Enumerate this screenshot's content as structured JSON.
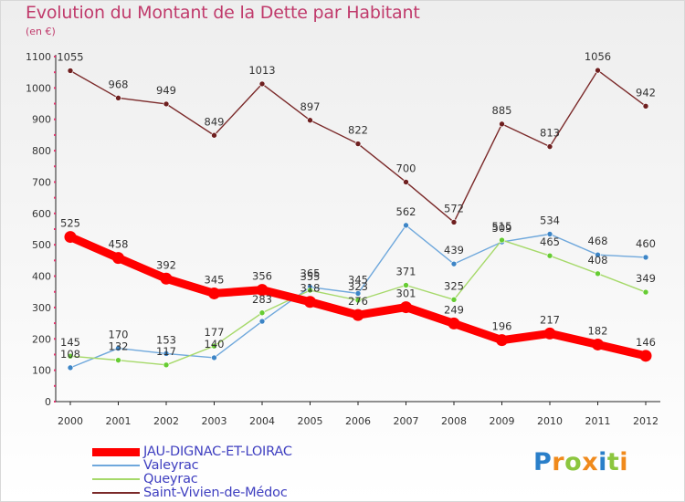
{
  "title": "Evolution du Montant de la Dette par Habitant",
  "subtitle": "(en €)",
  "logo": {
    "text": "Proxiti",
    "letters": [
      "P",
      "r",
      "o",
      "x",
      "i",
      "t",
      "i"
    ],
    "colors": [
      "#2a7fc9",
      "#f08a1c",
      "#8cc63f",
      "#f08a1c",
      "#2a7fc9",
      "#8cc63f",
      "#f08a1c"
    ]
  },
  "chart_data": {
    "type": "line",
    "title": "Evolution du Montant de la Dette par Habitant",
    "subtitle": "(en €)",
    "xlabel": "",
    "ylabel": "",
    "x": [
      "2000",
      "2001",
      "2002",
      "2003",
      "2004",
      "2005",
      "2006",
      "2007",
      "2008",
      "2009",
      "2010",
      "2011",
      "2012"
    ],
    "ylim": [
      0,
      1100
    ],
    "yticks": [
      0,
      100,
      200,
      300,
      400,
      500,
      600,
      700,
      800,
      900,
      1000,
      1100
    ],
    "grid": false,
    "legend_position": "bottom-left",
    "series": [
      {
        "name": "JAU-DIGNAC-ET-LOIRAC",
        "color": "#ff0000",
        "marker_color": "#ff0000",
        "width": "thick",
        "values": [
          525,
          458,
          392,
          345,
          356,
          318,
          276,
          301,
          249,
          196,
          217,
          182,
          146
        ],
        "labels": [
          "525",
          "458",
          "392",
          "345",
          "356",
          "318",
          "276",
          "301",
          "249",
          "196",
          "217",
          "182",
          "146"
        ]
      },
      {
        "name": "Valeyrac",
        "color": "#6fa8dc",
        "marker_color": "#3d85c6",
        "width": "thin",
        "values": [
          108,
          170,
          153,
          140,
          256,
          365,
          345,
          562,
          439,
          509,
          534,
          468,
          460
        ],
        "labels": [
          "108",
          "170",
          "153",
          "140",
          "",
          "365",
          "345",
          "562",
          "439",
          "509",
          "534",
          "468",
          "460"
        ]
      },
      {
        "name": "Queyrac",
        "color": "#a6d96a",
        "marker_color": "#66cc33",
        "width": "thin",
        "values": [
          145,
          132,
          117,
          177,
          283,
          355,
          323,
          371,
          325,
          515,
          465,
          408,
          349
        ],
        "labels": [
          "145",
          "132",
          "117",
          "177",
          "283",
          "355",
          "323",
          "371",
          "325",
          "515",
          "465",
          "408",
          "349"
        ]
      },
      {
        "name": "Saint-Vivien-de-Médoc",
        "color": "#7b2a2a",
        "marker_color": "#6e1f1f",
        "width": "thin",
        "values": [
          1055,
          968,
          949,
          849,
          1013,
          897,
          822,
          700,
          572,
          885,
          813,
          1056,
          942
        ],
        "labels": [
          "1055",
          "968",
          "949",
          "849",
          "1013",
          "897",
          "822",
          "700",
          "572",
          "885",
          "813",
          "1056",
          "942"
        ]
      }
    ]
  }
}
